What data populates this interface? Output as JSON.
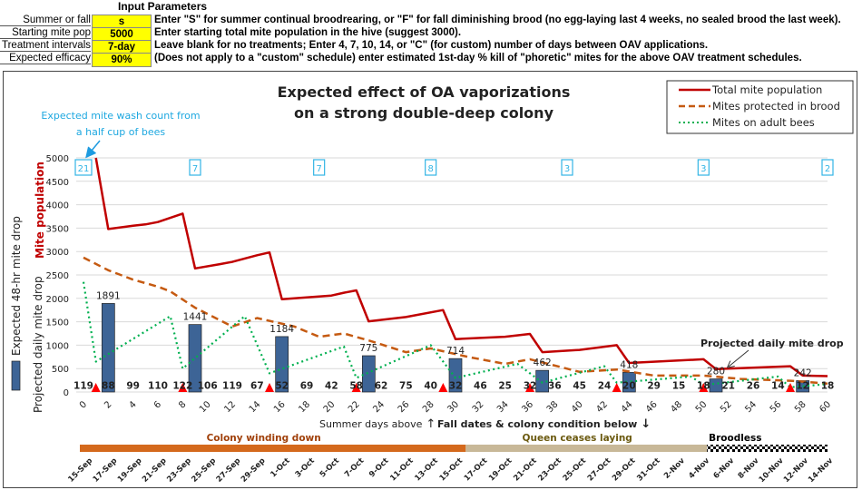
{
  "params": {
    "title": "Input Parameters",
    "rows": [
      {
        "label": "Summer or fall",
        "value": "s",
        "desc": "Enter \"S\" for summer continual broodrearing, or \"F\" for fall diminishing brood (no egg-laying  last 4 weeks, no sealed brood the last week)."
      },
      {
        "label": "Starting mite pop",
        "value": "5000",
        "desc": "Enter starting total mite population in the hive (suggest 3000)."
      },
      {
        "label": "Treatment intervals",
        "value": "7-day",
        "desc": "Leave blank for no treatments;  Enter  4, 7, 10, 14, or \"C\" (for custom) number of days between OAV applications."
      },
      {
        "label": "Expected efficacy",
        "value": "90%",
        "desc": "(Does not apply to a \"custom\" schedule) enter estimated 1st-day % kill of \"phoretic\" mites for the above OAV treatment schedules."
      }
    ]
  },
  "chart_data": {
    "type": "line",
    "title": "Expected effect of OA vaporizations on a strong double-deep colony",
    "title_lines": [
      "Expected effect of OA vaporizations",
      "on a strong double-deep colony"
    ],
    "ylabel_top": "Mite population",
    "ylabel_left1": "Expected 48-hr mite drop",
    "ylabel_left2": "Projected daily mite drop",
    "xlabel_summer": "Summer days above",
    "xlabel_fall": "Fall dates & colony condition below",
    "ylim": [
      0,
      5000
    ],
    "yticks": [
      0,
      500,
      1000,
      1500,
      2000,
      2500,
      3000,
      3500,
      4000,
      4500,
      5000
    ],
    "xlim": [
      0,
      60
    ],
    "xticks": [
      0,
      2,
      4,
      6,
      8,
      10,
      12,
      14,
      16,
      18,
      20,
      22,
      24,
      26,
      28,
      30,
      32,
      34,
      36,
      38,
      40,
      42,
      44,
      46,
      48,
      50,
      52,
      54,
      56,
      58,
      60
    ],
    "grid": true,
    "legend_position": "top-right",
    "colors": {
      "total": "#c00000",
      "brood": "#c55a11",
      "adult": "#00b050",
      "bar": "#3d6496",
      "treat": "#ff0000",
      "wash": "#33b5e5"
    },
    "series": [
      {
        "name": "Total mite population",
        "style": "solid",
        "points": [
          [
            1,
            5000
          ],
          [
            2,
            3480
          ],
          [
            4,
            3550
          ],
          [
            5,
            3580
          ],
          [
            6,
            3630
          ],
          [
            8,
            3810
          ],
          [
            9,
            2640
          ],
          [
            11,
            2730
          ],
          [
            12,
            2780
          ],
          [
            14,
            2920
          ],
          [
            15,
            2980
          ],
          [
            16,
            1980
          ],
          [
            18,
            2020
          ],
          [
            20,
            2060
          ],
          [
            21,
            2120
          ],
          [
            22,
            2170
          ],
          [
            23,
            1510
          ],
          [
            26,
            1600
          ],
          [
            29,
            1750
          ],
          [
            30,
            1130
          ],
          [
            34,
            1180
          ],
          [
            36,
            1240
          ],
          [
            37,
            850
          ],
          [
            40,
            900
          ],
          [
            43,
            1000
          ],
          [
            44,
            620
          ],
          [
            50,
            700
          ],
          [
            51,
            490
          ],
          [
            57,
            550
          ],
          [
            58,
            350
          ],
          [
            60,
            340
          ]
        ]
      },
      {
        "name": "Mites protected in brood",
        "style": "dashed",
        "points": [
          [
            0,
            2870
          ],
          [
            2,
            2600
          ],
          [
            4,
            2400
          ],
          [
            6,
            2250
          ],
          [
            7,
            2150
          ],
          [
            9,
            1800
          ],
          [
            12,
            1400
          ],
          [
            14,
            1580
          ],
          [
            17,
            1400
          ],
          [
            19,
            1180
          ],
          [
            21,
            1250
          ],
          [
            23,
            1100
          ],
          [
            26,
            850
          ],
          [
            28,
            930
          ],
          [
            31,
            750
          ],
          [
            34,
            600
          ],
          [
            36,
            700
          ],
          [
            40,
            430
          ],
          [
            43,
            480
          ],
          [
            46,
            350
          ],
          [
            50,
            350
          ],
          [
            53,
            280
          ],
          [
            57,
            240
          ],
          [
            60,
            180
          ]
        ]
      },
      {
        "name": "Mites on adult bees",
        "style": "dotted",
        "points": [
          [
            0,
            2350
          ],
          [
            1,
            650
          ],
          [
            7,
            1620
          ],
          [
            8,
            500
          ],
          [
            13,
            1620
          ],
          [
            15,
            400
          ],
          [
            21,
            970
          ],
          [
            22,
            300
          ],
          [
            28,
            1000
          ],
          [
            30,
            300
          ],
          [
            35,
            600
          ],
          [
            37,
            200
          ],
          [
            42,
            550
          ],
          [
            43,
            200
          ],
          [
            49,
            330
          ],
          [
            50,
            150
          ],
          [
            56,
            330
          ],
          [
            57,
            100
          ],
          [
            60,
            170
          ]
        ]
      }
    ],
    "bars": {
      "name": "Expected 48-hr mite drop",
      "days": [
        2,
        9,
        16,
        23,
        30,
        37,
        44,
        51,
        58
      ],
      "values": [
        1891,
        1441,
        1184,
        775,
        714,
        462,
        418,
        280,
        242
      ]
    },
    "daily_drop": {
      "days": [
        0,
        2,
        4,
        6,
        8,
        10,
        12,
        14,
        16,
        18,
        20,
        22,
        24,
        26,
        28,
        30,
        32,
        34,
        36,
        38,
        40,
        42,
        44,
        46,
        48,
        50,
        52,
        54,
        56,
        58,
        60
      ],
      "values": [
        119,
        88,
        99,
        110,
        122,
        106,
        119,
        67,
        52,
        69,
        42,
        58,
        62,
        75,
        40,
        32,
        46,
        25,
        32,
        36,
        45,
        24,
        20,
        29,
        15,
        18,
        21,
        26,
        14,
        12,
        18
      ]
    },
    "treatments": [
      1,
      8,
      15,
      22,
      29,
      36,
      43,
      50,
      57
    ],
    "wash_counts": [
      {
        "day": 0,
        "value": "21"
      },
      {
        "day": 9,
        "value": "7"
      },
      {
        "day": 19,
        "value": "7"
      },
      {
        "day": 28,
        "value": "8"
      },
      {
        "day": 39,
        "value": "3"
      },
      {
        "day": 50,
        "value": "3"
      },
      {
        "day": 60,
        "value": "2"
      }
    ],
    "annotations": {
      "wash": [
        "Expected mite wash count from",
        "a half cup of bees"
      ],
      "daily": "Projected daily mite drop"
    },
    "phases": [
      {
        "label": "Colony winding down",
        "from": 0,
        "to": 32,
        "color": "#d4691c",
        "text_color": "#a0400a"
      },
      {
        "label": "Queen ceases laying",
        "from": 32,
        "to": 52,
        "color": "#c8b898",
        "text_color": "#6b5a10"
      },
      {
        "label": "Broodless",
        "from": 52,
        "to": 62,
        "color": "checker",
        "text_color": "#000000"
      }
    ],
    "dates": [
      "15-Sep",
      "17-Sep",
      "19-Sep",
      "21-Sep",
      "23-Sep",
      "25-Sep",
      "27-Sep",
      "29-Sep",
      "1-Oct",
      "3-Oct",
      "5-Oct",
      "7-Oct",
      "9-Oct",
      "11-Oct",
      "13-Oct",
      "15-Oct",
      "17-Oct",
      "19-Oct",
      "21-Oct",
      "23-Oct",
      "25-Oct",
      "27-Oct",
      "29-Oct",
      "31-Oct",
      "2-Nov",
      "4-Nov",
      "6-Nov",
      "8-Nov",
      "10-Nov",
      "12-Nov",
      "14-Nov"
    ]
  }
}
